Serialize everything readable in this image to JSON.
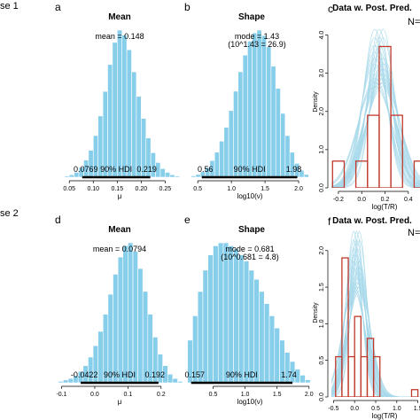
{
  "rows": [
    {
      "label": "se 1",
      "n_label": "N="
    },
    {
      "label": "se 2",
      "n_label": "N="
    }
  ],
  "colors": {
    "bar_fill": "#87ceeb",
    "bar_stroke": "#ffffff",
    "pred_line": "#a6d8ea",
    "hist_stroke": "#c0392b"
  },
  "chart_data": [
    {
      "id": "a",
      "letter": "a",
      "type": "bar",
      "title": "Mean",
      "xlabel": "μ",
      "xlim": [
        0.02,
        0.29
      ],
      "xticks": [
        0.05,
        0.1,
        0.15,
        0.2,
        0.25
      ],
      "tick_labels": [
        "0.05",
        "0.10",
        "0.15",
        "0.20",
        "0.25"
      ],
      "bins": [
        0.04,
        0.05,
        0.06,
        0.07,
        0.08,
        0.09,
        0.1,
        0.11,
        0.12,
        0.13,
        0.14,
        0.15,
        0.16,
        0.17,
        0.18,
        0.19,
        0.2,
        0.21,
        0.22,
        0.23,
        0.24,
        0.25,
        0.26,
        0.27
      ],
      "values": [
        0.5,
        1,
        2,
        4,
        7,
        11,
        17,
        25,
        35,
        46,
        55,
        60,
        58,
        52,
        43,
        33,
        24,
        16,
        10,
        6,
        3.5,
        2,
        1,
        0.5
      ],
      "bin_width": 0.01,
      "annotation": "mean = 0.148",
      "hdi_label": "90% HDI",
      "hdi_low": 0.0769,
      "hdi_low_label": "0.0769",
      "hdi_high": 0.219,
      "hdi_high_label": "0.219"
    },
    {
      "id": "b",
      "letter": "b",
      "type": "bar",
      "title": "Shape",
      "xlabel": "log10(ν)",
      "xlim": [
        0.3,
        2.25
      ],
      "xticks": [
        0.5,
        1.0,
        1.5,
        2.0
      ],
      "tick_labels": [
        "0.5",
        "1.0",
        "1.5",
        "2.0"
      ],
      "bins": [
        0.4,
        0.47,
        0.54,
        0.61,
        0.68,
        0.75,
        0.82,
        0.89,
        0.96,
        1.03,
        1.1,
        1.17,
        1.24,
        1.31,
        1.38,
        1.45,
        1.52,
        1.59,
        1.66,
        1.73,
        1.8,
        1.87,
        1.94,
        2.01,
        2.08
      ],
      "values": [
        0.5,
        1,
        2,
        3.5,
        6,
        9,
        13,
        18,
        24,
        31,
        38,
        44,
        49,
        52,
        53,
        51,
        47,
        40,
        32,
        23,
        15,
        9,
        5,
        2.5,
        1
      ],
      "bin_width": 0.07,
      "annotation": "mode = 1.43",
      "annotation2": "(10^1.43 = 26.9)",
      "hdi_label": "90% HDI",
      "hdi_low": 0.56,
      "hdi_low_label": "0.56",
      "hdi_high": 1.98,
      "hdi_high_label": "1.98"
    },
    {
      "id": "c",
      "letter": "c",
      "type": "bar",
      "title": "Data w. Post. Pred.",
      "xlabel": "log(T/R)",
      "ylabel": "Density",
      "xlim": [
        -0.26,
        0.5
      ],
      "ylim": [
        0,
        4.5
      ],
      "xticks": [
        -0.2,
        0.0,
        0.2,
        0.4
      ],
      "tick_labels": [
        "-0.2",
        "0.0",
        "0.2",
        "0.4"
      ],
      "yticks": [
        0.0,
        1.0,
        2.0,
        3.0,
        4.0
      ],
      "ytick_labels": [
        "0.0",
        "1.0",
        "2.0",
        "3.0",
        "4.0"
      ],
      "bin_edges": [
        -0.25,
        -0.15,
        -0.05,
        0.05,
        0.15,
        0.25,
        0.35,
        0.45,
        0.55
      ],
      "values": [
        0.7,
        0,
        0.7,
        1.9,
        3.7,
        1.9,
        0,
        0.7
      ],
      "pred_mu": 0.15,
      "pred_sigma": 0.12
    },
    {
      "id": "d",
      "letter": "d",
      "type": "bar",
      "title": "Mean",
      "xlabel": "μ",
      "xlim": [
        -0.12,
        0.27
      ],
      "xticks": [
        -0.1,
        0.0,
        0.1,
        0.2
      ],
      "tick_labels": [
        "-0.1",
        "0.0",
        "0.1",
        "0.2"
      ],
      "bins": [
        -0.11,
        -0.095,
        -0.08,
        -0.065,
        -0.05,
        -0.035,
        -0.02,
        -0.005,
        0.01,
        0.025,
        0.04,
        0.055,
        0.07,
        0.085,
        0.1,
        0.115,
        0.13,
        0.145,
        0.16,
        0.175,
        0.19,
        0.205,
        0.22,
        0.235,
        0.25
      ],
      "values": [
        0.5,
        1,
        1.5,
        2.5,
        4,
        6,
        9,
        13,
        18,
        24,
        31,
        38,
        44,
        48,
        49,
        46,
        40,
        32,
        24,
        16,
        10,
        6,
        3,
        1.5,
        0.5
      ],
      "bin_width": 0.015,
      "annotation": "mean = 0.0794",
      "hdi_label": "90% HDI",
      "hdi_low": -0.0422,
      "hdi_low_label": "-0.0422",
      "hdi_high": 0.192,
      "hdi_high_label": "0.192"
    },
    {
      "id": "e",
      "letter": "e",
      "type": "bar",
      "title": "Shape",
      "xlabel": "log10(ν)",
      "xlim": [
        0.05,
        2.1
      ],
      "xticks": [
        0.5,
        1.0,
        1.5,
        2.0
      ],
      "tick_labels": [
        "0.5",
        "1.0",
        "1.5",
        "2.0"
      ],
      "bins": [
        0.1,
        0.18,
        0.26,
        0.34,
        0.42,
        0.5,
        0.58,
        0.66,
        0.74,
        0.82,
        0.9,
        0.98,
        1.06,
        1.14,
        1.22,
        1.3,
        1.38,
        1.46,
        1.54,
        1.62,
        1.7,
        1.78,
        1.86,
        1.94
      ],
      "values": [
        14,
        22,
        30,
        37,
        42,
        45,
        46,
        46,
        45,
        44,
        42,
        40,
        37,
        34,
        30,
        26,
        22,
        18,
        14,
        10,
        7,
        4.5,
        2.5,
        1
      ],
      "bin_width": 0.08,
      "annotation": "mode = 0.681",
      "annotation2": "(10^0.681 = 4.8)",
      "hdi_label": "90% HDI",
      "hdi_low": 0.157,
      "hdi_low_label": "0.157",
      "hdi_high": 1.74,
      "hdi_high_label": "1.74"
    },
    {
      "id": "f",
      "letter": "f",
      "type": "bar",
      "title": "Data w. Post. Pred.",
      "xlabel": "log(T/R)",
      "ylabel": "Density",
      "xlim": [
        -0.55,
        1.55
      ],
      "ylim": [
        0,
        2.3
      ],
      "xticks": [
        -0.5,
        0.0,
        0.5,
        1.0,
        1.5
      ],
      "tick_labels": [
        "-0.5",
        "0.0",
        "0.5",
        "1.0",
        "1.5"
      ],
      "yticks": [
        0.0,
        0.5,
        1.0,
        1.5,
        2.0
      ],
      "ytick_labels": [
        "0.0",
        "0.5",
        "1.0",
        "1.5",
        "2.0"
      ],
      "bin_edges": [
        -0.45,
        -0.3,
        -0.15,
        0.0,
        0.15,
        0.3,
        0.45,
        0.6,
        0.75,
        0.9,
        1.05,
        1.2,
        1.35,
        1.5
      ],
      "values": [
        0.55,
        1.9,
        0.55,
        1.1,
        0.55,
        0.8,
        0.55,
        0,
        0,
        0,
        0,
        0,
        0.1
      ],
      "pred_mu": 0.05,
      "pred_sigma": 0.22
    }
  ]
}
